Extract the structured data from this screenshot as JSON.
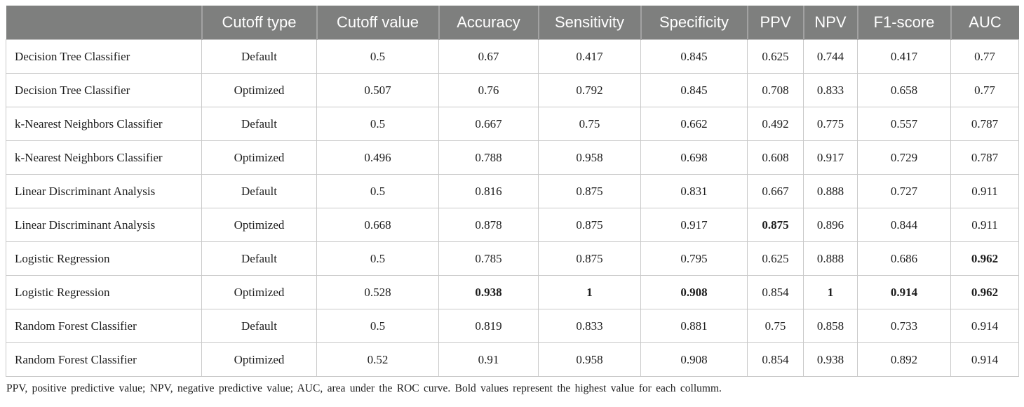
{
  "colors": {
    "header_bg": "#7e7f7e",
    "header_text": "#ffffff",
    "body_border": "#c9c9c9",
    "body_text": "#1d1d1d"
  },
  "table": {
    "columns": [
      "",
      "Cutoff type",
      "Cutoff value",
      "Accuracy",
      "Sensitivity",
      "Specificity",
      "PPV",
      "NPV",
      "F1-score",
      "AUC"
    ],
    "rows": [
      {
        "model": "Decision Tree Classifier",
        "cells": [
          "Default",
          "0.5",
          "0.67",
          "0.417",
          "0.845",
          "0.625",
          "0.744",
          "0.417",
          "0.77"
        ],
        "bold": []
      },
      {
        "model": "Decision Tree Classifier",
        "cells": [
          "Optimized",
          "0.507",
          "0.76",
          "0.792",
          "0.845",
          "0.708",
          "0.833",
          "0.658",
          "0.77"
        ],
        "bold": []
      },
      {
        "model": "k-Nearest Neighbors Classifier",
        "cells": [
          "Default",
          "0.5",
          "0.667",
          "0.75",
          "0.662",
          "0.492",
          "0.775",
          "0.557",
          "0.787"
        ],
        "bold": []
      },
      {
        "model": "k-Nearest Neighbors Classifier",
        "cells": [
          "Optimized",
          "0.496",
          "0.788",
          "0.958",
          "0.698",
          "0.608",
          "0.917",
          "0.729",
          "0.787"
        ],
        "bold": []
      },
      {
        "model": "Linear Discriminant Analysis",
        "cells": [
          "Default",
          "0.5",
          "0.816",
          "0.875",
          "0.831",
          "0.667",
          "0.888",
          "0.727",
          "0.911"
        ],
        "bold": []
      },
      {
        "model": "Linear Discriminant Analysis",
        "cells": [
          "Optimized",
          "0.668",
          "0.878",
          "0.875",
          "0.917",
          "0.875",
          "0.896",
          "0.844",
          "0.911"
        ],
        "bold": [
          5
        ]
      },
      {
        "model": "Logistic Regression",
        "cells": [
          "Default",
          "0.5",
          "0.785",
          "0.875",
          "0.795",
          "0.625",
          "0.888",
          "0.686",
          "0.962"
        ],
        "bold": [
          8
        ]
      },
      {
        "model": "Logistic Regression",
        "cells": [
          "Optimized",
          "0.528",
          "0.938",
          "1",
          "0.908",
          "0.854",
          "1",
          "0.914",
          "0.962"
        ],
        "bold": [
          2,
          3,
          4,
          6,
          7,
          8
        ]
      },
      {
        "model": "Random Forest Classifier",
        "cells": [
          "Default",
          "0.5",
          "0.819",
          "0.833",
          "0.881",
          "0.75",
          "0.858",
          "0.733",
          "0.914"
        ],
        "bold": []
      },
      {
        "model": "Random Forest Classifier",
        "cells": [
          "Optimized",
          "0.52",
          "0.91",
          "0.958",
          "0.908",
          "0.854",
          "0.938",
          "0.892",
          "0.914"
        ],
        "bold": []
      }
    ]
  },
  "footnote": "PPV, positive predictive value; NPV, negative predictive value; AUC, area under the ROC curve. Bold values represent the highest value for each collumm."
}
